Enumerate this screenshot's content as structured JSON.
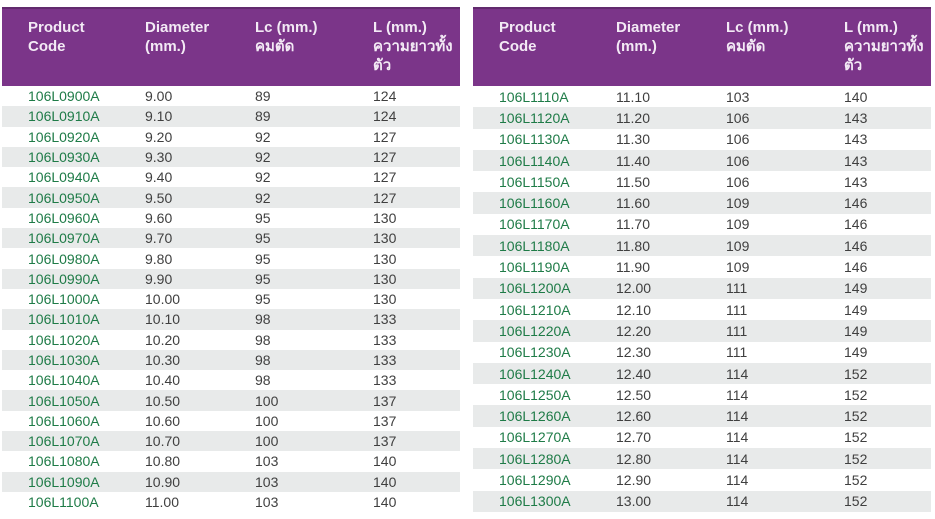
{
  "theme": {
    "header_bg": "#7b3589",
    "header_text": "#f3eaf5",
    "row_alt_bg": "#e8eaea",
    "row_bg": "#ffffff",
    "code_color": "#1e7b47",
    "value_color": "#3f3f3f"
  },
  "columns": [
    {
      "en": "Product Code",
      "th": ""
    },
    {
      "en": "Diameter (mm.)",
      "th": ""
    },
    {
      "en": "Lc (mm.)",
      "th": "คมตัด"
    },
    {
      "en": "L (mm.)",
      "th": "ความยาวทั้งตัว"
    }
  ],
  "tables": [
    {
      "name": "left",
      "rows": [
        [
          "106L0900A",
          "9.00",
          "89",
          "124"
        ],
        [
          "106L0910A",
          "9.10",
          "89",
          "124"
        ],
        [
          "106L0920A",
          "9.20",
          "92",
          "127"
        ],
        [
          "106L0930A",
          "9.30",
          "92",
          "127"
        ],
        [
          "106L0940A",
          "9.40",
          "92",
          "127"
        ],
        [
          "106L0950A",
          "9.50",
          "92",
          "127"
        ],
        [
          "106L0960A",
          "9.60",
          "95",
          "130"
        ],
        [
          "106L0970A",
          "9.70",
          "95",
          "130"
        ],
        [
          "106L0980A",
          "9.80",
          "95",
          "130"
        ],
        [
          "106L0990A",
          "9.90",
          "95",
          "130"
        ],
        [
          "106L1000A",
          "10.00",
          "95",
          "130"
        ],
        [
          "106L1010A",
          "10.10",
          "98",
          "133"
        ],
        [
          "106L1020A",
          "10.20",
          "98",
          "133"
        ],
        [
          "106L1030A",
          "10.30",
          "98",
          "133"
        ],
        [
          "106L1040A",
          "10.40",
          "98",
          "133"
        ],
        [
          "106L1050A",
          "10.50",
          "100",
          "137"
        ],
        [
          "106L1060A",
          "10.60",
          "100",
          "137"
        ],
        [
          "106L1070A",
          "10.70",
          "100",
          "137"
        ],
        [
          "106L1080A",
          "10.80",
          "103",
          "140"
        ],
        [
          "106L1090A",
          "10.90",
          "103",
          "140"
        ],
        [
          "106L1100A",
          "11.00",
          "103",
          "140"
        ]
      ]
    },
    {
      "name": "right",
      "rows": [
        [
          "106L1110A",
          "11.10",
          "103",
          "140"
        ],
        [
          "106L1120A",
          "11.20",
          "106",
          "143"
        ],
        [
          "106L1130A",
          "11.30",
          "106",
          "143"
        ],
        [
          "106L1140A",
          "11.40",
          "106",
          "143"
        ],
        [
          "106L1150A",
          "11.50",
          "106",
          "143"
        ],
        [
          "106L1160A",
          "11.60",
          "109",
          "146"
        ],
        [
          "106L1170A",
          "11.70",
          "109",
          "146"
        ],
        [
          "106L1180A",
          "11.80",
          "109",
          "146"
        ],
        [
          "106L1190A",
          "11.90",
          "109",
          "146"
        ],
        [
          "106L1200A",
          "12.00",
          "111",
          "149"
        ],
        [
          "106L1210A",
          "12.10",
          "111",
          "149"
        ],
        [
          "106L1220A",
          "12.20",
          "111",
          "149"
        ],
        [
          "106L1230A",
          "12.30",
          "111",
          "149"
        ],
        [
          "106L1240A",
          "12.40",
          "114",
          "152"
        ],
        [
          "106L1250A",
          "12.50",
          "114",
          "152"
        ],
        [
          "106L1260A",
          "12.60",
          "114",
          "152"
        ],
        [
          "106L1270A",
          "12.70",
          "114",
          "152"
        ],
        [
          "106L1280A",
          "12.80",
          "114",
          "152"
        ],
        [
          "106L1290A",
          "12.90",
          "114",
          "152"
        ],
        [
          "106L1300A",
          "13.00",
          "114",
          "152"
        ]
      ]
    }
  ]
}
